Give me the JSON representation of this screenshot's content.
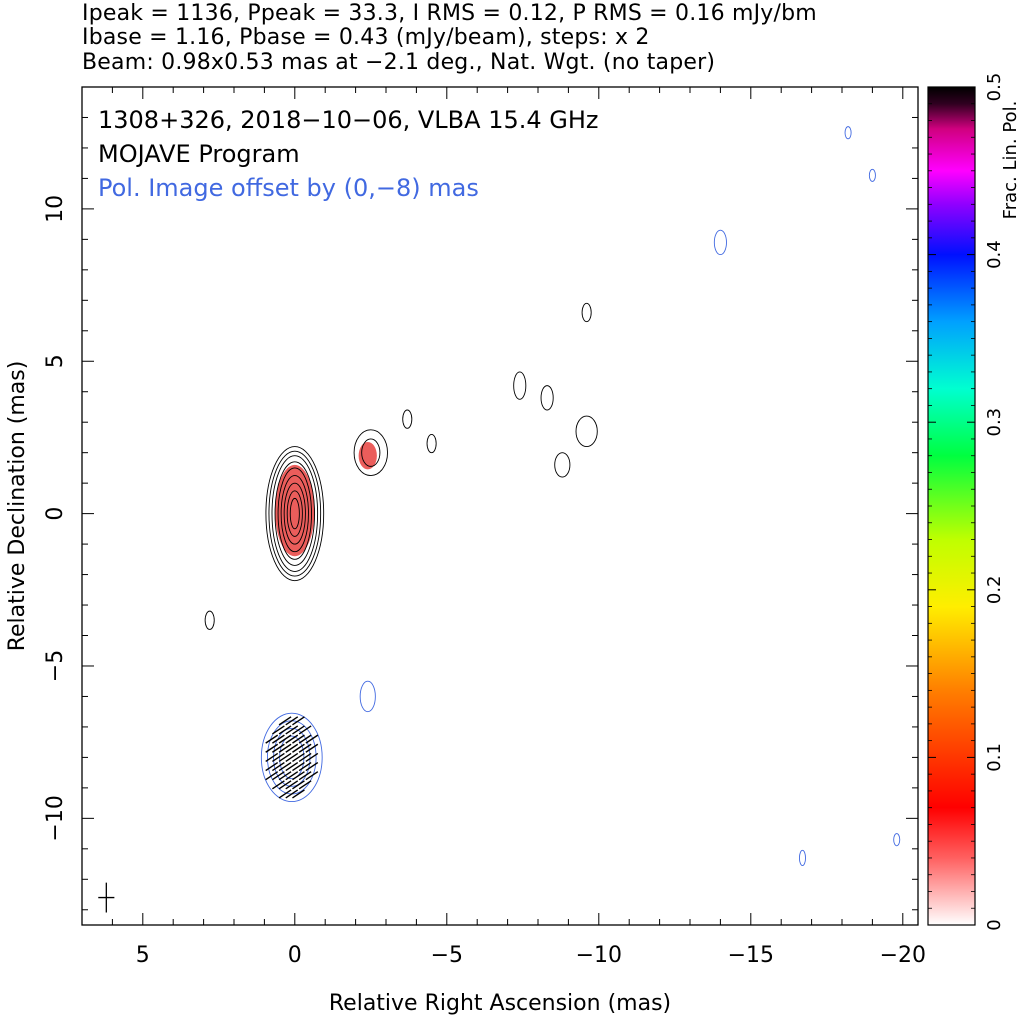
{
  "header": {
    "line1": "Ipeak = 1136, Ppeak = 33.3, I RMS = 0.12, P RMS = 0.16 mJy/bm",
    "line2": "Ibase = 1.16, Pbase = 0.43 (mJy/beam), steps: x 2",
    "line3": "Beam: 0.98x0.53 mas at −2.1 deg., Nat. Wgt. (no taper)"
  },
  "chart_data": {
    "type": "contour",
    "title_lines": [
      "1308+326, 2018−10−06, VLBA 15.4 GHz",
      "MOJAVE Program"
    ],
    "annotation": "Pol. Image offset by (0,−8) mas",
    "xlabel": "Relative Right Ascension (mas)",
    "ylabel": "Relative Declination (mas)",
    "xlim": [
      7,
      -20.5
    ],
    "ylim": [
      -13.5,
      14
    ],
    "x_ticks": [
      5,
      0,
      -5,
      -10,
      -15,
      -20
    ],
    "x_tick_labels": [
      "5",
      "0",
      "−5",
      "−10",
      "−15",
      "−20"
    ],
    "y_ticks": [
      10,
      5,
      0,
      -5,
      -10
    ],
    "y_tick_labels": [
      "10",
      "5",
      "0",
      "−5",
      "−10"
    ],
    "colorbar": {
      "label": "Frac. Lin. Pol.",
      "range": [
        0,
        0.5
      ],
      "ticks": [
        0,
        0.1,
        0.2,
        0.3,
        0.4,
        0.5
      ],
      "tick_labels": [
        "0",
        "0.1",
        "0.2",
        "0.3",
        "0.4",
        "0.5"
      ]
    },
    "colors": {
      "total_intensity_contours": "#000000",
      "polarization_contours": "#4169e1",
      "annotation_text": "#4169e1",
      "frac_pol_core": "#e8413e",
      "evpa_ticks": "#000000"
    },
    "total_intensity_components": [
      {
        "name": "core",
        "x": 0.0,
        "y": 0.0,
        "rx": [
          0.15,
          0.25,
          0.35,
          0.45,
          0.55,
          0.65,
          0.75,
          0.85,
          0.95
        ],
        "ry": [
          0.5,
          0.75,
          1.0,
          1.25,
          1.5,
          1.7,
          1.9,
          2.05,
          2.2
        ]
      },
      {
        "name": "knot",
        "x": -2.5,
        "y": 2.0,
        "rx": [
          0.3,
          0.55
        ],
        "ry": [
          0.45,
          0.75
        ]
      },
      {
        "name": "blob-a",
        "x": -9.6,
        "y": 2.7,
        "rx": [
          0.35
        ],
        "ry": [
          0.5
        ]
      },
      {
        "name": "blob-b",
        "x": -7.4,
        "y": 4.2,
        "rx": [
          0.2
        ],
        "ry": [
          0.45
        ]
      },
      {
        "name": "blob-c",
        "x": -8.3,
        "y": 3.8,
        "rx": [
          0.2
        ],
        "ry": [
          0.4
        ]
      },
      {
        "name": "blob-d",
        "x": -8.8,
        "y": 1.6,
        "rx": [
          0.25
        ],
        "ry": [
          0.4
        ]
      },
      {
        "name": "blob-e",
        "x": -3.7,
        "y": 3.1,
        "rx": [
          0.15
        ],
        "ry": [
          0.3
        ]
      },
      {
        "name": "blob-f",
        "x": -4.5,
        "y": 2.3,
        "rx": [
          0.15
        ],
        "ry": [
          0.3
        ]
      },
      {
        "name": "blob-g",
        "x": 2.8,
        "y": -3.5,
        "rx": [
          0.15
        ],
        "ry": [
          0.3
        ]
      },
      {
        "name": "blob-h",
        "x": -9.6,
        "y": 6.6,
        "rx": [
          0.15
        ],
        "ry": [
          0.3
        ]
      }
    ],
    "polarization_components": [
      {
        "name": "core-pol",
        "x": 0.1,
        "y": -8.0,
        "rx": [
          0.4,
          0.6,
          0.8,
          1.0
        ],
        "ry": [
          0.7,
          0.95,
          1.2,
          1.45
        ]
      },
      {
        "name": "knot-pol",
        "x": -2.4,
        "y": -6.0,
        "rx": [
          0.25
        ],
        "ry": [
          0.5
        ]
      },
      {
        "name": "pol-spot-1",
        "x": -14.0,
        "y": 8.9,
        "rx": [
          0.2
        ],
        "ry": [
          0.4
        ]
      },
      {
        "name": "pol-spot-2",
        "x": -16.7,
        "y": -11.3,
        "rx": [
          0.1
        ],
        "ry": [
          0.25
        ]
      },
      {
        "name": "pol-spot-3",
        "x": -19.8,
        "y": -10.7,
        "rx": [
          0.1
        ],
        "ry": [
          0.2
        ]
      },
      {
        "name": "pol-spot-4",
        "x": -18.2,
        "y": 12.5,
        "rx": [
          0.1
        ],
        "ry": [
          0.2
        ]
      },
      {
        "name": "pol-spot-5",
        "x": -19.0,
        "y": 11.1,
        "rx": [
          0.1
        ],
        "ry": [
          0.2
        ]
      }
    ],
    "frac_pol_regions": [
      {
        "name": "core",
        "x": 0.0,
        "y": 0.1,
        "rx": 0.65,
        "ry": 1.5,
        "frac_pol": 0.06
      },
      {
        "name": "knot",
        "x": -2.4,
        "y": 1.9,
        "rx": 0.3,
        "ry": 0.45,
        "frac_pol": 0.08
      }
    ],
    "beam": {
      "x": 6.2,
      "y": -12.6,
      "major": 0.98,
      "minor": 0.53,
      "pa_deg": -2.1
    }
  }
}
